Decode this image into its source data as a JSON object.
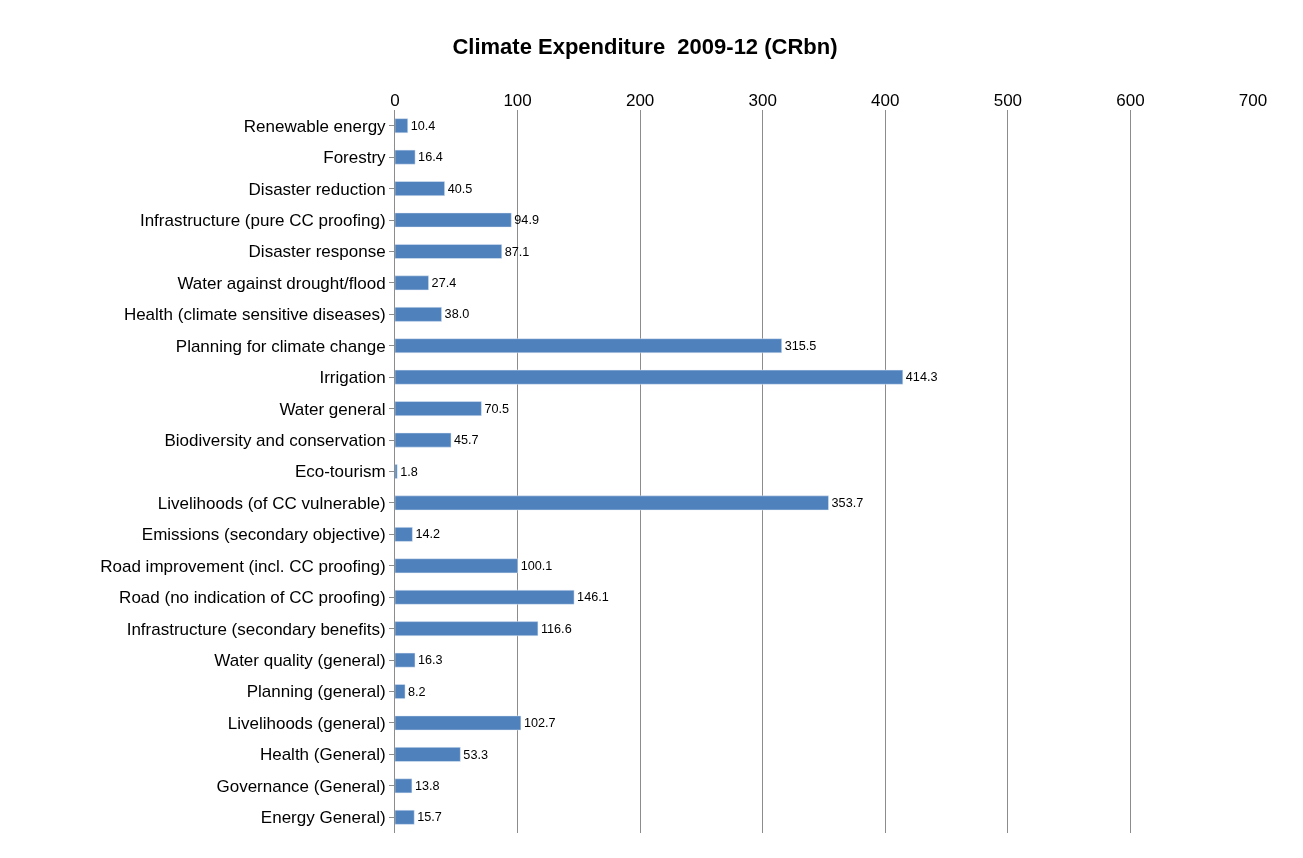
{
  "chart_data": {
    "type": "bar",
    "orientation": "horizontal",
    "title": "Climate Expenditure  2009-12 (CRbn)",
    "categories": [
      "Renewable energy",
      "Forestry",
      "Disaster reduction",
      "Infrastructure (pure CC proofing)",
      "Disaster response",
      "Water against drought/flood",
      "Health (climate sensitive diseases)",
      "Planning for climate change",
      "Irrigation",
      "Water general",
      "Biodiversity and conservation",
      "Eco-tourism",
      "Livelihoods (of CC vulnerable)",
      "Emissions (secondary objective)",
      "Road improvement (incl. CC proofing)",
      "Road (no indication of CC proofing)",
      "Infrastructure (secondary benefits)",
      "Water quality (general)",
      "Planning (general)",
      "Livelihoods (general)",
      "Health (General)",
      "Governance (General)",
      "Energy General)"
    ],
    "values": [
      10.4,
      16.4,
      40.5,
      94.9,
      87.1,
      27.4,
      38.0,
      315.5,
      414.3,
      70.5,
      45.7,
      1.8,
      353.7,
      14.2,
      100.1,
      146.1,
      116.6,
      16.3,
      8.2,
      102.7,
      53.3,
      13.8,
      15.7
    ],
    "value_labels": [
      "10.4",
      "16.4",
      "40.5",
      "94.9",
      "87.1",
      "27.4",
      "38.0",
      "315.5",
      "414.3",
      "70.5",
      "45.7",
      "1.8",
      "353.7",
      "14.2",
      "100.1",
      "146.1",
      "116.6",
      "16.3",
      "8.2",
      "102.7",
      "53.3",
      "13.8",
      "15.7"
    ],
    "color": "#4f81bd",
    "xlim": [
      0,
      700
    ],
    "xticks": [
      0,
      100,
      200,
      300,
      400,
      500,
      600,
      700
    ],
    "grid": "x",
    "legend": false
  }
}
